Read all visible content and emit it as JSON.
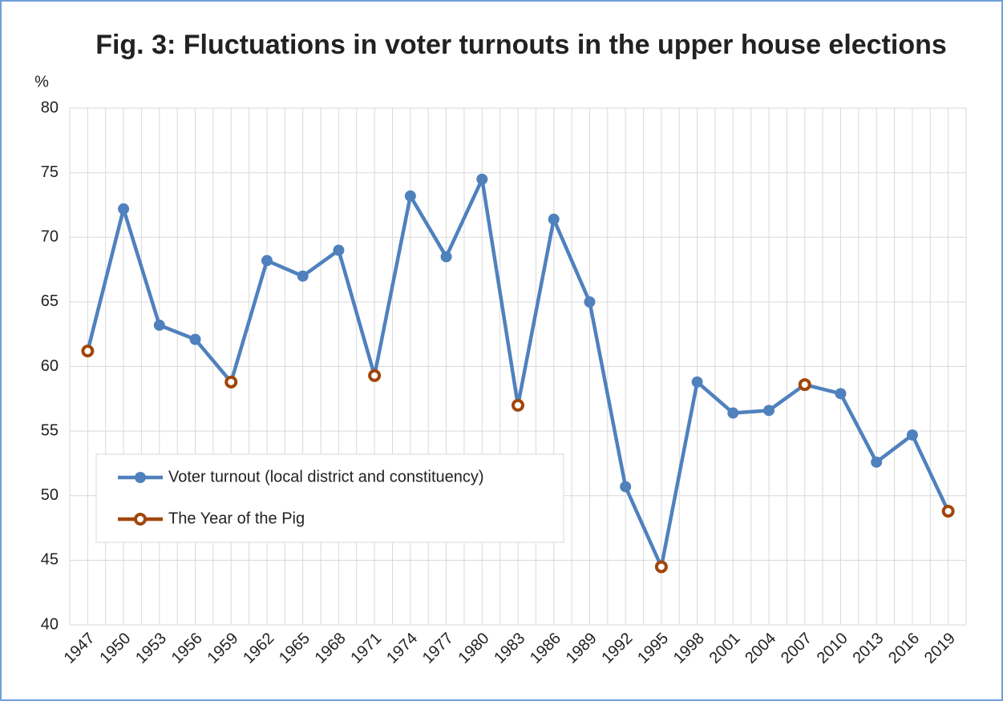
{
  "chart_data": {
    "type": "line",
    "title": "Fig. 3: Fluctuations in voter turnouts in the upper house elections",
    "y_unit": "%",
    "categories": [
      "1947",
      "1950",
      "1953",
      "1956",
      "1959",
      "1962",
      "1965",
      "1968",
      "1971",
      "1974",
      "1977",
      "1980",
      "1983",
      "1986",
      "1989",
      "1992",
      "1995",
      "1998",
      "2001",
      "2004",
      "2007",
      "2010",
      "2013",
      "2016",
      "2019"
    ],
    "series": [
      {
        "name": "Voter turnout (local district and constituency)",
        "color": "#4f81bd",
        "values": [
          61.2,
          72.2,
          63.2,
          62.1,
          58.8,
          68.2,
          67.0,
          69.0,
          59.3,
          73.2,
          68.5,
          74.5,
          57.0,
          71.4,
          65.0,
          50.7,
          44.5,
          58.8,
          56.4,
          56.6,
          58.6,
          57.9,
          52.6,
          54.7,
          48.8
        ]
      },
      {
        "name": "The Year of the Pig",
        "color": "#a0460a",
        "values": [
          61.2,
          null,
          null,
          null,
          58.8,
          null,
          null,
          null,
          59.3,
          null,
          null,
          null,
          57.0,
          null,
          null,
          null,
          44.5,
          null,
          null,
          null,
          58.6,
          null,
          null,
          null,
          48.8
        ]
      }
    ],
    "ylim": [
      40,
      80
    ],
    "yticks": [
      40,
      45,
      50,
      55,
      60,
      65,
      70,
      75,
      80
    ],
    "grid": true,
    "legend": "lower left"
  }
}
